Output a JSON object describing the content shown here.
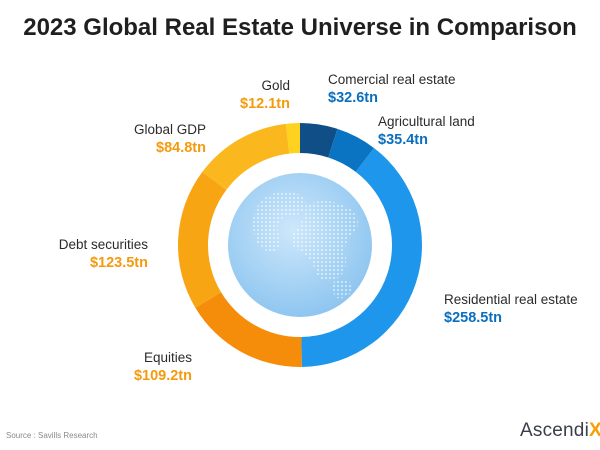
{
  "chart_data": {
    "type": "pie",
    "title": "2023 Global Real Estate Universe in Comparison",
    "unit": "tn",
    "slices": [
      {
        "name": "Comercial real estate",
        "value": 32.6,
        "label": "$32.6tn",
        "color": "#0f4e86"
      },
      {
        "name": "Agricultural land",
        "value": 35.4,
        "label": "$35.4tn",
        "color": "#0a74c2"
      },
      {
        "name": "Residential real estate",
        "value": 258.5,
        "label": "$258.5tn",
        "color": "#1e96ec"
      },
      {
        "name": "Equities",
        "value": 109.2,
        "label": "$109.2tn",
        "color": "#f58d0a"
      },
      {
        "name": "Debt securities",
        "value": 123.5,
        "label": "$123.5tn",
        "color": "#f8a514"
      },
      {
        "name": "Global GDP",
        "value": 84.8,
        "label": "$84.8tn",
        "color": "#fbb71e"
      },
      {
        "name": "Gold",
        "value": 12.1,
        "label": "$12.1tn",
        "color": "#ffd21f"
      }
    ]
  },
  "footer": {
    "source": "Source : Savills Research",
    "brand": "Ascendi",
    "brand_accent": "X"
  },
  "colors": {
    "blue_label": "#0a6fbf",
    "orange_label": "#f59a0c",
    "globe": "#a9d4f5"
  }
}
